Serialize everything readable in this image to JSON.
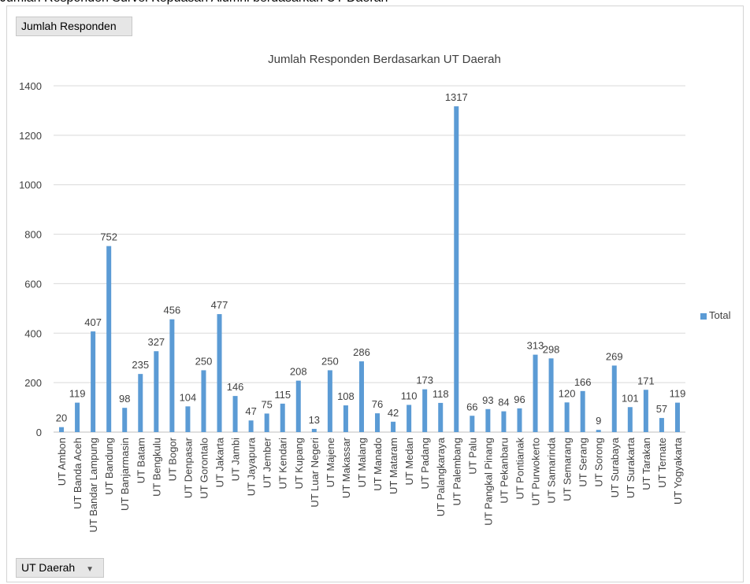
{
  "caption": "Jumlah Responden Survei Kepuasan Alumni berdasarkan UT Daerah",
  "pivot": {
    "value_field_button": "Jumlah Responden",
    "axis_field_button": "UT Daerah",
    "dropdown_icon": "chevron-down-icon"
  },
  "colors": {
    "bar": "#5b9bd5",
    "grid": "#d9d9d9",
    "axis": "#bfbfbf",
    "text": "#404040"
  },
  "chart_data": {
    "type": "bar",
    "title": "Jumlah Responden Berdasarkan UT Daerah",
    "xlabel": "",
    "ylabel": "",
    "ylim": [
      0,
      1400
    ],
    "yticks": [
      0,
      200,
      400,
      600,
      800,
      1000,
      1200,
      1400
    ],
    "grid": true,
    "legend": "right",
    "categories": [
      "UT Ambon",
      "UT Banda Aceh",
      "UT Bandar Lampung",
      "UT Bandung",
      "UT Banjarmasin",
      "UT Batam",
      "UT Bengkulu",
      "UT Bogor",
      "UT Denpasar",
      "UT Gorontalo",
      "UT Jakarta",
      "UT Jambi",
      "UT Jayapura",
      "UT Jember",
      "UT Kendari",
      "UT Kupang",
      "UT Luar Negeri",
      "UT Majene",
      "UT Makassar",
      "UT Malang",
      "UT Manado",
      "UT Mataram",
      "UT Medan",
      "UT Padang",
      "UT Palangkaraya",
      "UT Palembang",
      "UT Palu",
      "UT Pangkal Pinang",
      "UT Pekanbaru",
      "UT Pontianak",
      "UT Purwokerto",
      "UT Samarinda",
      "UT Semarang",
      "UT Serang",
      "UT Sorong",
      "UT Surabaya",
      "UT Surakarta",
      "UT Tarakan",
      "UT Ternate",
      "UT Yogyakarta"
    ],
    "series": [
      {
        "name": "Total",
        "values": [
          20,
          119,
          407,
          752,
          98,
          235,
          327,
          456,
          104,
          250,
          477,
          146,
          47,
          75,
          115,
          208,
          13,
          250,
          108,
          286,
          76,
          42,
          110,
          173,
          118,
          1317,
          66,
          93,
          84,
          96,
          313,
          298,
          120,
          166,
          9,
          269,
          101,
          171,
          57,
          119
        ]
      }
    ]
  }
}
